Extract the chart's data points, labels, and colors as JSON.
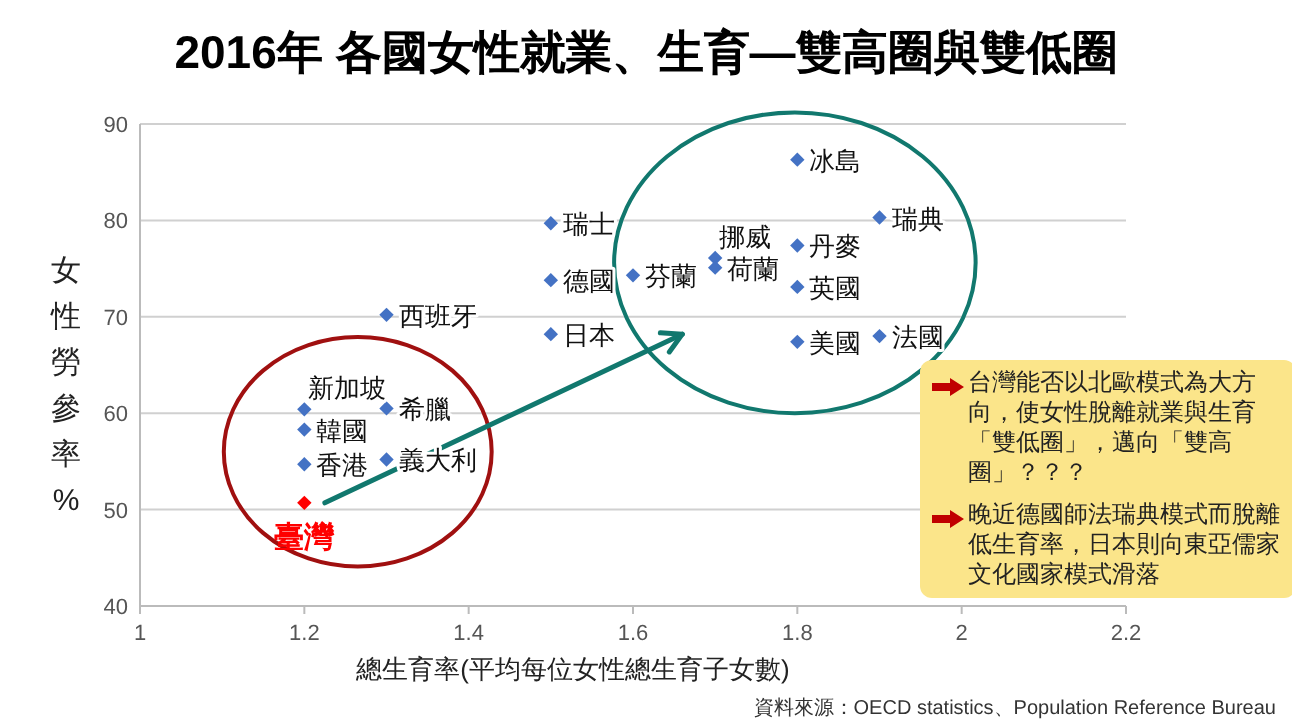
{
  "chart_data": {
    "type": "scatter",
    "title": "2016年 各國女性就業、生育—雙高圈與雙低圈",
    "xlabel": "總生育率(平均每位女性總生育子女數)",
    "ylabel": "女性勞參率%",
    "xlim": [
      1,
      2.2
    ],
    "xticks": [
      1,
      1.2,
      1.4,
      1.6,
      1.8,
      2,
      2.2
    ],
    "ylim": [
      40,
      90
    ],
    "yticks": [
      40,
      50,
      60,
      70,
      80,
      90
    ],
    "grid": "y",
    "marker": "diamond",
    "series": [
      {
        "color": "#4472c4",
        "x": [
          1.5,
          1.5,
          1.5,
          1.3,
          1.2,
          1.2,
          1.2,
          1.3,
          1.3,
          1.6,
          1.7,
          1.7,
          1.8,
          1.8,
          1.8,
          1.8,
          1.9,
          1.9
        ],
        "values": [
          79.7,
          73.8,
          68.2,
          70.2,
          60.4,
          58.3,
          54.7,
          60.5,
          55.2,
          74.3,
          76.1,
          75.1,
          86.3,
          77.4,
          73.1,
          67.4,
          80.3,
          68.0
        ]
      },
      {
        "name": "臺灣",
        "color": "#ff0000",
        "x": [
          1.2
        ],
        "values": [
          50.7
        ]
      }
    ],
    "annotations": [
      {
        "text": "瑞士",
        "x": 1.5,
        "y": 79.7
      },
      {
        "text": "德國",
        "x": 1.5,
        "y": 73.8
      },
      {
        "text": "日本",
        "x": 1.5,
        "y": 68.2
      },
      {
        "text": "西班牙",
        "x": 1.3,
        "y": 70.2
      },
      {
        "text": "新加坡",
        "x": 1.2,
        "y": 60.4
      },
      {
        "text": "韓國",
        "x": 1.2,
        "y": 58.3
      },
      {
        "text": "香港",
        "x": 1.2,
        "y": 54.7
      },
      {
        "text": "希臘",
        "x": 1.3,
        "y": 60.5
      },
      {
        "text": "義大利",
        "x": 1.3,
        "y": 55.2
      },
      {
        "text": "芬蘭",
        "x": 1.6,
        "y": 74.3
      },
      {
        "text": "挪威",
        "x": 1.7,
        "y": 76.1
      },
      {
        "text": "荷蘭",
        "x": 1.7,
        "y": 75.1
      },
      {
        "text": "冰島",
        "x": 1.8,
        "y": 86.3
      },
      {
        "text": "丹麥",
        "x": 1.8,
        "y": 77.4
      },
      {
        "text": "英國",
        "x": 1.8,
        "y": 73.1
      },
      {
        "text": "美國",
        "x": 1.8,
        "y": 67.4
      },
      {
        "text": "瑞典",
        "x": 1.9,
        "y": 80.3
      },
      {
        "text": "法國",
        "x": 1.9,
        "y": 68.0
      },
      "台灣能否以北歐模式為大方向，使女性脫離就業與生育「雙低圈」，邁向「雙高圈」？？？",
      "晚近德國師法瑞典模式而脫離低生育率，日本則向東亞儒家文化國家模式滑落",
      "資料來源：OECD statistics、Population Reference Bureau"
    ]
  }
}
